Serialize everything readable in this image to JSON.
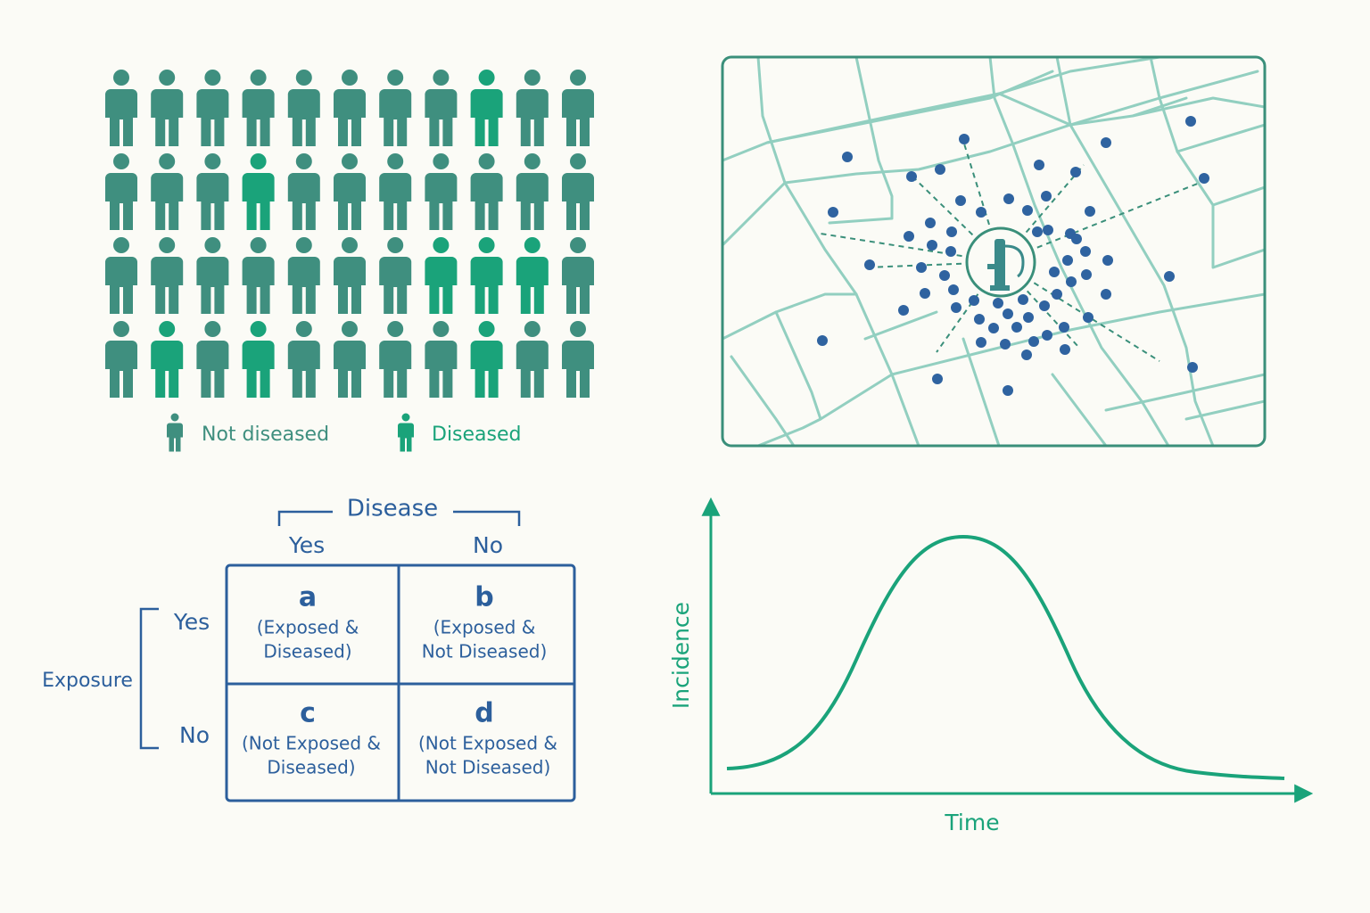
{
  "legend": {
    "not_diseased": "Not diseased",
    "diseased": "Diseased"
  },
  "table": {
    "column_header": "Disease",
    "columns": [
      "Yes",
      "No"
    ],
    "row_header": "Exposure",
    "rows": [
      "Yes",
      "No"
    ],
    "cells": [
      [
        {
          "letter": "a",
          "description": [
            "(Exposed &",
            "Diseased)"
          ]
        },
        {
          "letter": "b",
          "description": [
            "(Exposed &",
            "Not Diseased)"
          ]
        }
      ],
      [
        {
          "letter": "c",
          "description": [
            "(Not Exposed &",
            "Diseased)"
          ]
        },
        {
          "letter": "d",
          "description": [
            "(Not Exposed &",
            "Not Diseased)"
          ]
        }
      ]
    ]
  },
  "curve": {
    "y_label": "Incidence",
    "x_label": "Time"
  }
}
